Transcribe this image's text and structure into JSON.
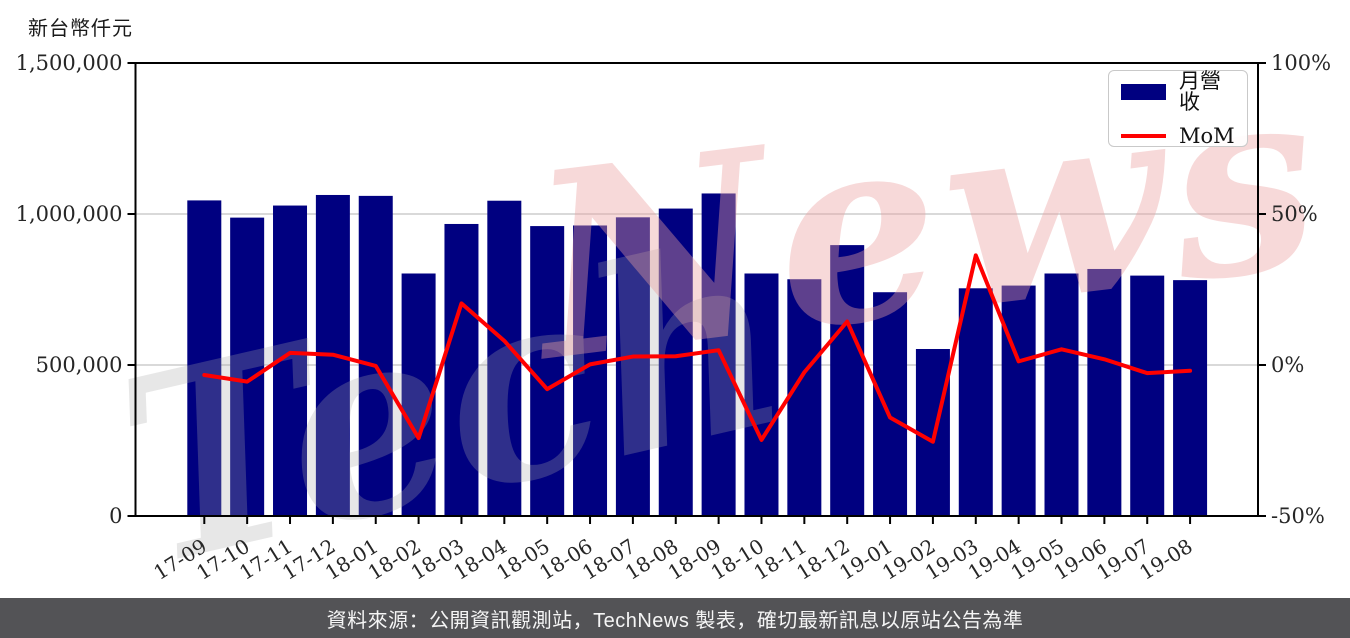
{
  "unit_label": "新台幣仟元",
  "legend": {
    "bar_label": "月營收",
    "line_label": "MoM"
  },
  "footer": {
    "text": "資料來源：公開資訊觀測站，TechNews 製表，確切最新訊息以原站公告為準"
  },
  "watermark": {
    "brand": "TechNews",
    "left_part": "Tech",
    "right_part": "News"
  },
  "colors": {
    "bar": "#000080",
    "line": "#ff0000",
    "grid": "#d9d9d9",
    "axis": "#000000",
    "tick_text": "#262626",
    "footer_bg": "#535356",
    "footer_text": "#f5f5f5",
    "watermark_pink": "rgba(236,160,160,0.40)",
    "watermark_gray": "rgba(168,168,168,0.28)"
  },
  "chart_data": {
    "type": "bar",
    "title": "",
    "categories": [
      "17-09",
      "17-10",
      "17-11",
      "17-12",
      "18-01",
      "18-02",
      "18-03",
      "18-04",
      "18-05",
      "18-06",
      "18-07",
      "18-08",
      "18-09",
      "18-10",
      "18-11",
      "18-12",
      "19-01",
      "19-02",
      "19-03",
      "19-04",
      "19-05",
      "19-06",
      "19-07",
      "19-08"
    ],
    "series": [
      {
        "name": "月營收",
        "type": "bar",
        "axis": "left",
        "unit": "新台幣仟元",
        "values": [
          1045000,
          988000,
          1028000,
          1063000,
          1060000,
          803000,
          967000,
          1044000,
          960000,
          962000,
          989000,
          1018000,
          1068000,
          803000,
          784000,
          897000,
          741000,
          553000,
          754000,
          763000,
          803000,
          818000,
          796000,
          781000
        ]
      },
      {
        "name": "MoM",
        "type": "line",
        "axis": "right",
        "unit": "%",
        "values": [
          -3.3,
          -5.5,
          4.0,
          3.4,
          -0.3,
          -24.2,
          20.4,
          8.0,
          -8.0,
          0.2,
          2.8,
          2.9,
          4.9,
          -24.8,
          -2.4,
          14.4,
          -17.4,
          -25.4,
          36.3,
          1.2,
          5.2,
          1.9,
          -2.7,
          -1.9
        ]
      }
    ],
    "left_axis": {
      "label": "新台幣仟元",
      "range": [
        0,
        1500000
      ],
      "tick_values": [
        0,
        500000,
        1000000,
        1500000
      ],
      "tick_labels": [
        "0",
        "500,000",
        "1,000,000",
        "1,500,000"
      ]
    },
    "right_axis": {
      "label": "MoM",
      "range": [
        -50,
        100
      ],
      "tick_values": [
        -50,
        0,
        50,
        100
      ],
      "tick_labels": [
        "-50%",
        "0%",
        "50%",
        "100%"
      ]
    },
    "grid": "horizontal",
    "legend_position": "top-right"
  }
}
